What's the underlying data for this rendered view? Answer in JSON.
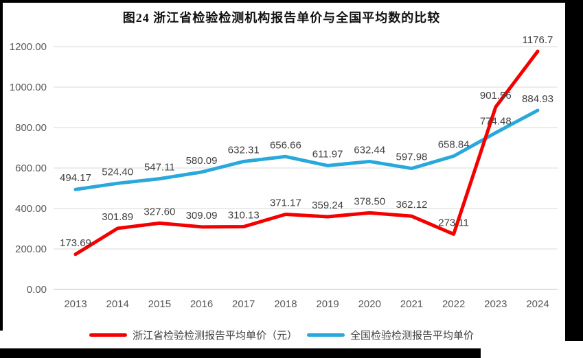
{
  "figure": {
    "title": "图24  浙江省检验检测机构报告单价与全国平均数的比较"
  },
  "chart_data": {
    "type": "line",
    "title": "图24  浙江省检验检测机构报告单价与全国平均数的比较",
    "categories": [
      "2013",
      "2014",
      "2015",
      "2016",
      "2017",
      "2018",
      "2019",
      "2020",
      "2021",
      "2022",
      "2023",
      "2024"
    ],
    "series": [
      {
        "name": "浙江省检验检测报告平均单价（元）",
        "color": "#f40000",
        "values": [
          173.69,
          301.89,
          327.6,
          309.09,
          310.13,
          371.17,
          359.24,
          378.5,
          362.12,
          273.11,
          901.56,
          1176.7
        ],
        "labels": [
          "173.69",
          "301.89",
          "327.60",
          "309.09",
          "310.13",
          "371.17",
          "359.24",
          "378.50",
          "362.12",
          "273.11",
          "901.56",
          "1176.7"
        ]
      },
      {
        "name": "全国检验检测报告平均单价",
        "color": "#29a8dc",
        "values": [
          494.17,
          524.4,
          547.11,
          580.09,
          632.31,
          656.66,
          611.97,
          632.44,
          597.98,
          658.84,
          774.48,
          884.93
        ],
        "labels": [
          "494.17",
          "524.40",
          "547.11",
          "580.09",
          "632.31",
          "656.66",
          "611.97",
          "632.44",
          "597.98",
          "658.84",
          "774.48",
          "884.93"
        ]
      }
    ],
    "xlabel": "",
    "ylabel": "",
    "ylim": [
      0,
      1200
    ],
    "ytick_step": 200,
    "ytick_labels": [
      "0.00",
      "200.00",
      "400.00",
      "600.00",
      "800.00",
      "1000.00",
      "1200.00"
    ],
    "grid": true,
    "legend_position": "bottom",
    "colors": {
      "gridline": "#d9d9d9",
      "axis_line": "#c0c0c0",
      "tick_text": "#595959",
      "data_label_text": "#3f3f3f",
      "title_text": "#111111",
      "legend_text": "#404040"
    }
  }
}
